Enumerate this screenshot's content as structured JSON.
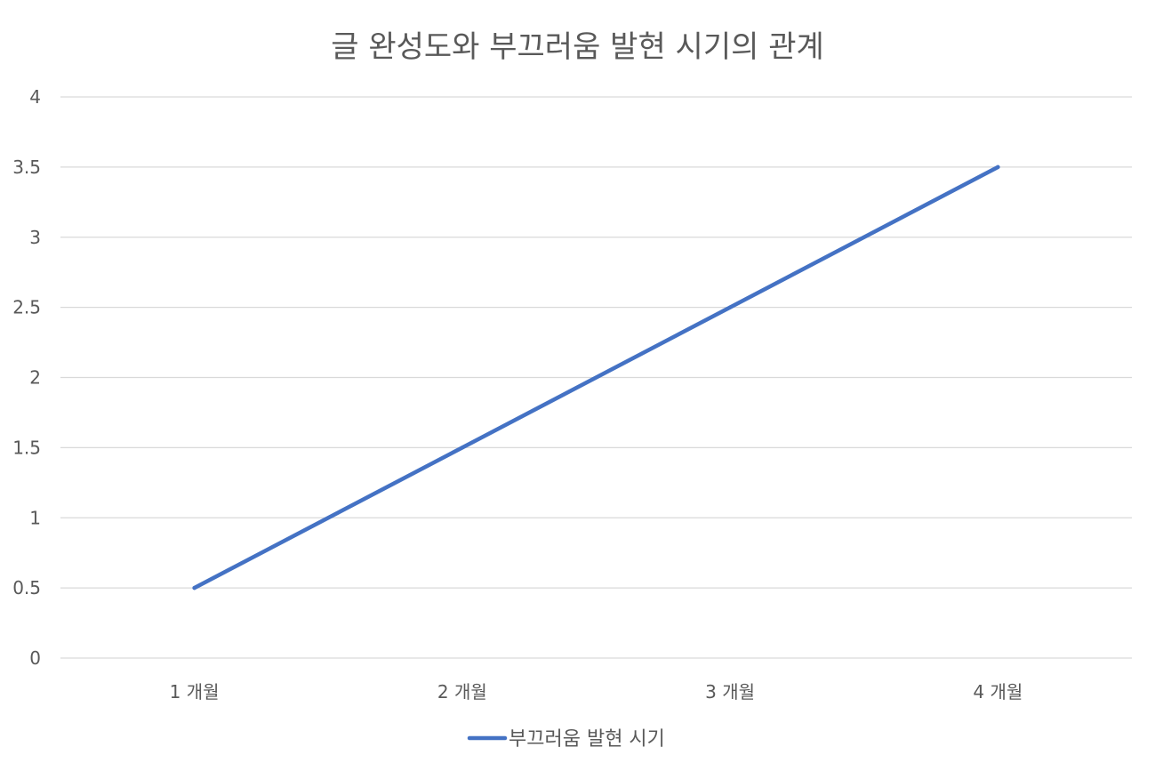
{
  "chart_data": {
    "type": "line",
    "title": "글 완성도와 부끄러움 발현 시기의 관계",
    "categories": [
      "1 개월",
      "2 개월",
      "3 개월",
      "4 개월"
    ],
    "series": [
      {
        "name": "부끄러움 발현 시기",
        "values": [
          0.5,
          1.5,
          2.5,
          3.5
        ],
        "color": "#4472C4"
      }
    ],
    "ylim": [
      0,
      4
    ],
    "y_ticks": [
      "0",
      "0.5",
      "1",
      "1.5",
      "2",
      "2.5",
      "3",
      "3.5",
      "4"
    ],
    "grid": true,
    "legend_position": "bottom",
    "gridline_color": "#D9D9D9"
  }
}
